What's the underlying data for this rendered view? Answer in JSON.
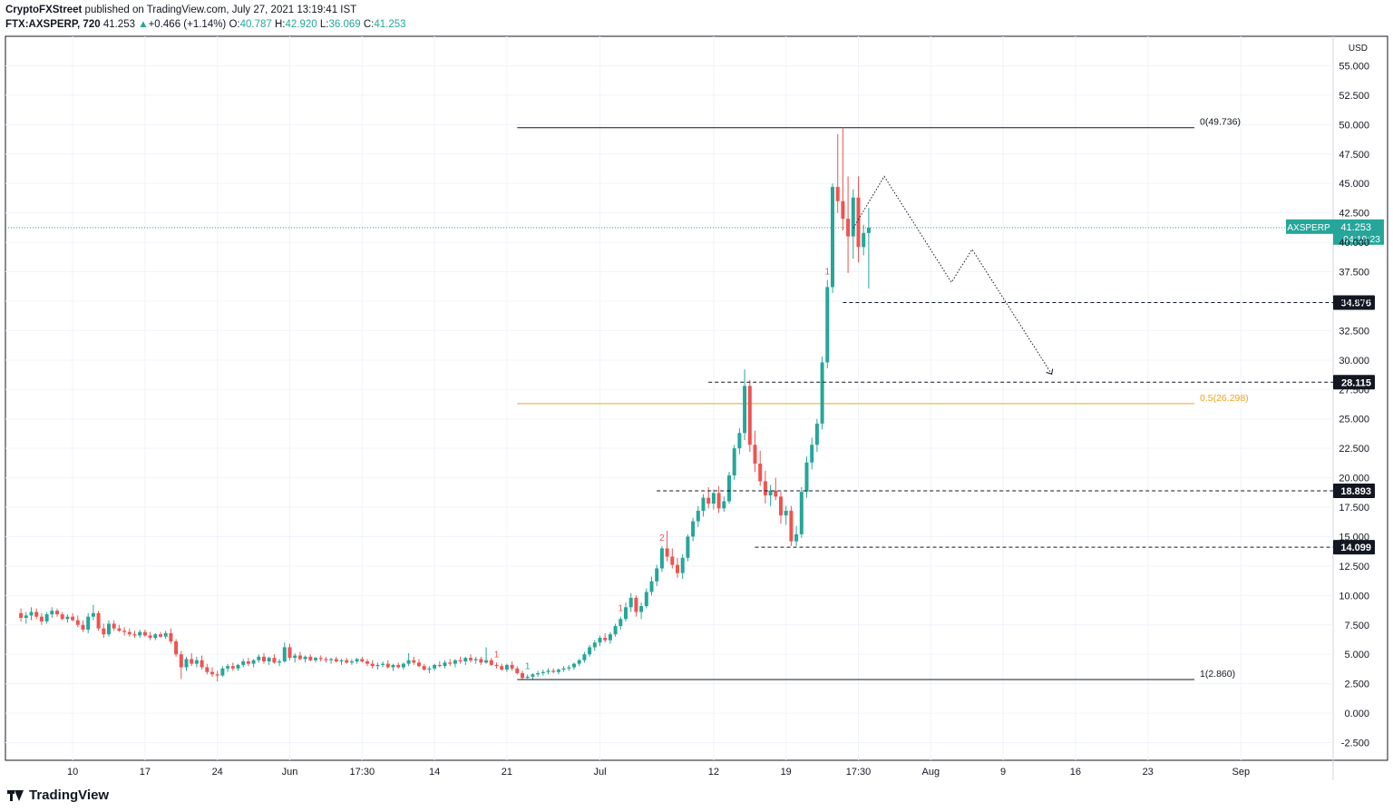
{
  "header": {
    "publisher": "CryptoFXStreet",
    "published_text": " published on TradingView.com, July 27, 2021 13:19:41 IST",
    "symbol_tf": "FTX:AXSPERP, 720",
    "last": "41.253",
    "change_arrow": "▲",
    "change": "+0.466 (+1.14%)",
    "o_label": "O:",
    "o_value": "40.787",
    "h_label": "H:",
    "h_value": "42.920",
    "l_label": "L:",
    "l_value": "36.069",
    "c_label": "C:",
    "c_value": "41.253"
  },
  "footer": {
    "brand": "TradingView"
  },
  "colors": {
    "up": "#26a69a",
    "down": "#ef5350",
    "fib_mid": "#f7a21b",
    "price_line": "#26a69a",
    "grid": "#f0f3fa",
    "text": "#131722"
  },
  "chart_data": {
    "type": "candlestick",
    "currency": "USD",
    "price_axis": {
      "ylim": [
        -4.0,
        57.5
      ],
      "ticks": [
        55.0,
        52.5,
        50.0,
        47.5,
        45.0,
        42.5,
        40.0,
        37.5,
        35.0,
        32.5,
        30.0,
        27.5,
        25.0,
        22.5,
        20.0,
        17.5,
        15.0,
        12.5,
        10.0,
        7.5,
        5.0,
        2.5,
        0.0,
        -2.5
      ],
      "tick_labels": [
        "55.000",
        "52.500",
        "50.000",
        "47.500",
        "45.000",
        "42.500",
        "40.000",
        "37.500",
        "35.000",
        "32.500",
        "30.000",
        "27.500",
        "25.000",
        "22.500",
        "20.000",
        "17.500",
        "15.000",
        "12.500",
        "10.000",
        "7.500",
        "5.000",
        "2.500",
        "0.000",
        "-2.500"
      ]
    },
    "time_axis": {
      "bars_per_day": 2,
      "first_visible_bar_day": 5,
      "ticks": [
        {
          "day": 10,
          "label": "10"
        },
        {
          "day": 17,
          "label": "17"
        },
        {
          "day": 24,
          "label": "24"
        },
        {
          "day": 31,
          "label": "Jun"
        },
        {
          "day": 38,
          "label": "17:30"
        },
        {
          "day": 45,
          "label": "14"
        },
        {
          "day": 52,
          "label": "21"
        },
        {
          "day": 61,
          "label": "Jul"
        },
        {
          "day": 72,
          "label": "12"
        },
        {
          "day": 79,
          "label": "19"
        },
        {
          "day": 86,
          "label": "17:30"
        },
        {
          "day": 93,
          "label": "Aug"
        },
        {
          "day": 100,
          "label": "9"
        },
        {
          "day": 107,
          "label": "16"
        },
        {
          "day": 114,
          "label": "23"
        },
        {
          "day": 123,
          "label": "Sep"
        }
      ]
    },
    "price_levels": [
      {
        "value": 34.876,
        "label": "34.876",
        "from_day": 84.5
      },
      {
        "value": 28.115,
        "label": "28.115",
        "from_day": 71.5
      },
      {
        "value": 18.893,
        "label": "18.893",
        "from_day": 66.5
      },
      {
        "value": 14.099,
        "label": "14.099",
        "from_day": 76.0
      }
    ],
    "fib_levels": [
      {
        "level": "0",
        "value": 49.736,
        "label": "0(49.736)"
      },
      {
        "level": "0.5",
        "value": 26.298,
        "label": "0.5(26.298)"
      },
      {
        "level": "1",
        "value": 2.86,
        "label": "1(2.860)"
      }
    ],
    "fib_range_days": [
      53.0,
      118.5
    ],
    "last_price": {
      "symbol": "AXSPERP",
      "value": "41.253",
      "countdown": "04:10:23"
    },
    "projection_path": [
      {
        "day": 85.5,
        "price": 41.2
      },
      {
        "day": 88.5,
        "price": 45.6
      },
      {
        "day": 95.0,
        "price": 36.6
      },
      {
        "day": 97.0,
        "price": 39.4
      },
      {
        "day": 104.7,
        "price": 28.8
      }
    ],
    "markers": [
      {
        "day": 51.0,
        "text": "1",
        "color": "down"
      },
      {
        "day": 54.0,
        "text": "1",
        "color": "up"
      },
      {
        "day": 63.0,
        "text": "1",
        "color": "down"
      },
      {
        "day": 67.0,
        "text": "2",
        "color": "down"
      },
      {
        "day": 83.0,
        "text": "1",
        "color": "down"
      }
    ],
    "ohlc": [
      [
        8.5,
        8.9,
        7.8,
        8.1
      ],
      [
        8.1,
        8.6,
        7.6,
        8.3
      ],
      [
        8.3,
        9.0,
        7.9,
        8.6
      ],
      [
        8.6,
        8.9,
        8.0,
        8.2
      ],
      [
        8.2,
        8.5,
        7.5,
        7.8
      ],
      [
        7.8,
        8.6,
        7.6,
        8.4
      ],
      [
        8.4,
        9.0,
        8.1,
        8.7
      ],
      [
        8.7,
        8.9,
        8.2,
        8.4
      ],
      [
        8.4,
        8.6,
        7.9,
        8.0
      ],
      [
        8.0,
        8.4,
        7.7,
        8.2
      ],
      [
        8.2,
        8.5,
        7.8,
        7.9
      ],
      [
        7.9,
        8.3,
        7.3,
        7.5
      ],
      [
        7.5,
        7.9,
        6.9,
        7.1
      ],
      [
        7.1,
        8.5,
        6.8,
        8.2
      ],
      [
        8.2,
        9.2,
        7.9,
        8.5
      ],
      [
        8.5,
        8.7,
        7.0,
        7.2
      ],
      [
        7.2,
        7.6,
        6.4,
        6.7
      ],
      [
        6.7,
        7.9,
        6.5,
        7.6
      ],
      [
        7.6,
        7.9,
        7.0,
        7.2
      ],
      [
        7.2,
        7.5,
        6.9,
        7.0
      ],
      [
        7.0,
        7.3,
        6.6,
        6.9
      ],
      [
        6.9,
        7.2,
        6.5,
        6.7
      ],
      [
        6.7,
        7.0,
        6.4,
        6.6
      ],
      [
        6.6,
        7.1,
        6.4,
        6.9
      ],
      [
        6.9,
        7.1,
        6.5,
        6.6
      ],
      [
        6.6,
        6.9,
        6.2,
        6.4
      ],
      [
        6.4,
        6.8,
        6.2,
        6.7
      ],
      [
        6.7,
        6.9,
        6.4,
        6.5
      ],
      [
        6.5,
        7.0,
        6.3,
        6.8
      ],
      [
        6.8,
        7.2,
        5.9,
        6.1
      ],
      [
        6.1,
        6.3,
        4.8,
        5.0
      ],
      [
        5.0,
        5.3,
        2.9,
        3.9
      ],
      [
        3.9,
        4.8,
        3.6,
        4.6
      ],
      [
        4.6,
        5.1,
        4.0,
        4.2
      ],
      [
        4.2,
        4.8,
        3.9,
        4.5
      ],
      [
        4.5,
        4.9,
        3.7,
        3.9
      ],
      [
        3.9,
        4.2,
        3.3,
        3.5
      ],
      [
        3.5,
        3.9,
        3.1,
        3.3
      ],
      [
        3.3,
        3.6,
        2.7,
        3.2
      ],
      [
        3.2,
        4.0,
        3.1,
        3.8
      ],
      [
        3.8,
        4.2,
        3.5,
        4.0
      ],
      [
        4.0,
        4.3,
        3.6,
        3.8
      ],
      [
        3.8,
        4.2,
        3.6,
        4.1
      ],
      [
        4.1,
        4.6,
        3.9,
        4.4
      ],
      [
        4.4,
        4.7,
        4.0,
        4.2
      ],
      [
        4.2,
        4.6,
        3.9,
        4.5
      ],
      [
        4.5,
        5.0,
        4.3,
        4.8
      ],
      [
        4.8,
        5.1,
        4.2,
        4.4
      ],
      [
        4.4,
        4.8,
        4.1,
        4.7
      ],
      [
        4.7,
        5.0,
        4.2,
        4.3
      ],
      [
        4.3,
        4.6,
        4.0,
        4.4
      ],
      [
        4.4,
        6.0,
        4.3,
        5.6
      ],
      [
        5.6,
        5.9,
        4.5,
        4.7
      ],
      [
        4.7,
        5.1,
        4.3,
        4.9
      ],
      [
        4.9,
        5.2,
        4.5,
        4.6
      ],
      [
        4.6,
        4.9,
        4.3,
        4.8
      ],
      [
        4.8,
        5.0,
        4.4,
        4.5
      ],
      [
        4.5,
        4.8,
        4.3,
        4.7
      ],
      [
        4.7,
        4.9,
        4.4,
        4.6
      ],
      [
        4.6,
        4.8,
        4.3,
        4.5
      ],
      [
        4.5,
        4.7,
        4.2,
        4.6
      ],
      [
        4.6,
        4.8,
        4.3,
        4.4
      ],
      [
        4.4,
        4.6,
        4.1,
        4.5
      ],
      [
        4.5,
        4.7,
        4.2,
        4.3
      ],
      [
        4.3,
        4.6,
        4.1,
        4.4
      ],
      [
        4.4,
        4.7,
        4.2,
        4.6
      ],
      [
        4.6,
        4.8,
        4.3,
        4.4
      ],
      [
        4.4,
        4.6,
        4.0,
        4.2
      ],
      [
        4.2,
        4.5,
        3.8,
        4.0
      ],
      [
        4.0,
        4.3,
        3.7,
        4.1
      ],
      [
        4.1,
        4.4,
        3.9,
        4.2
      ],
      [
        4.2,
        4.5,
        3.8,
        3.9
      ],
      [
        3.9,
        4.2,
        3.6,
        4.1
      ],
      [
        4.1,
        4.3,
        3.8,
        3.9
      ],
      [
        3.9,
        4.3,
        3.7,
        4.2
      ],
      [
        4.2,
        5.1,
        4.0,
        4.5
      ],
      [
        4.5,
        4.8,
        4.1,
        4.3
      ],
      [
        4.3,
        4.6,
        3.9,
        4.0
      ],
      [
        4.0,
        4.2,
        3.6,
        3.7
      ],
      [
        3.7,
        4.0,
        3.4,
        3.8
      ],
      [
        3.8,
        4.2,
        3.6,
        4.1
      ],
      [
        4.1,
        4.4,
        3.9,
        4.0
      ],
      [
        4.0,
        4.5,
        3.8,
        4.3
      ],
      [
        4.3,
        4.6,
        4.0,
        4.2
      ],
      [
        4.2,
        4.6,
        3.9,
        4.5
      ],
      [
        4.5,
        4.8,
        4.2,
        4.4
      ],
      [
        4.4,
        4.8,
        4.1,
        4.7
      ],
      [
        4.7,
        5.0,
        4.3,
        4.5
      ],
      [
        4.5,
        4.8,
        4.2,
        4.6
      ],
      [
        4.6,
        4.8,
        4.1,
        4.3
      ],
      [
        4.3,
        5.6,
        4.2,
        4.5
      ],
      [
        4.5,
        4.7,
        4.0,
        4.1
      ],
      [
        4.1,
        4.3,
        3.8,
        4.0
      ],
      [
        4.0,
        4.2,
        3.6,
        3.7
      ],
      [
        3.7,
        4.2,
        3.5,
        4.1
      ],
      [
        4.1,
        4.4,
        3.6,
        3.8
      ],
      [
        3.8,
        4.0,
        3.3,
        3.4
      ],
      [
        3.4,
        3.6,
        2.9,
        3.0
      ],
      [
        3.0,
        3.3,
        2.86,
        3.1
      ],
      [
        3.1,
        3.4,
        2.9,
        3.3
      ],
      [
        3.3,
        3.6,
        3.1,
        3.4
      ],
      [
        3.4,
        3.7,
        3.2,
        3.5
      ],
      [
        3.5,
        3.8,
        3.3,
        3.6
      ],
      [
        3.6,
        3.8,
        3.4,
        3.5
      ],
      [
        3.5,
        3.8,
        3.3,
        3.7
      ],
      [
        3.7,
        4.0,
        3.5,
        3.8
      ],
      [
        3.8,
        4.1,
        3.6,
        3.9
      ],
      [
        3.9,
        4.3,
        3.7,
        4.2
      ],
      [
        4.2,
        4.6,
        4.0,
        4.5
      ],
      [
        4.5,
        5.2,
        4.3,
        5.0
      ],
      [
        5.0,
        5.8,
        4.8,
        5.6
      ],
      [
        5.6,
        6.2,
        5.3,
        6.0
      ],
      [
        6.0,
        6.6,
        5.7,
        6.4
      ],
      [
        6.4,
        6.8,
        6.0,
        6.2
      ],
      [
        6.2,
        6.9,
        5.9,
        6.7
      ],
      [
        6.7,
        7.6,
        6.5,
        7.4
      ],
      [
        7.4,
        8.2,
        7.1,
        8.0
      ],
      [
        8.0,
        9.4,
        7.8,
        9.0
      ],
      [
        9.0,
        10.2,
        8.6,
        9.8
      ],
      [
        9.8,
        10.0,
        8.2,
        8.6
      ],
      [
        8.6,
        9.4,
        8.0,
        9.1
      ],
      [
        9.1,
        10.6,
        8.9,
        10.3
      ],
      [
        10.3,
        11.6,
        10.0,
        11.2
      ],
      [
        11.2,
        12.6,
        10.8,
        12.3
      ],
      [
        12.3,
        14.2,
        12.0,
        14.0
      ],
      [
        14.0,
        15.5,
        12.9,
        13.3
      ],
      [
        13.3,
        14.0,
        12.3,
        12.6
      ],
      [
        12.6,
        13.2,
        11.5,
        11.9
      ],
      [
        11.9,
        13.5,
        11.4,
        13.2
      ],
      [
        13.2,
        15.2,
        12.9,
        15.0
      ],
      [
        15.0,
        16.6,
        14.6,
        16.3
      ],
      [
        16.3,
        17.6,
        15.8,
        17.2
      ],
      [
        17.2,
        18.6,
        16.7,
        18.3
      ],
      [
        18.3,
        19.2,
        17.4,
        17.8
      ],
      [
        17.8,
        19.0,
        17.3,
        18.7
      ],
      [
        18.7,
        19.3,
        17.0,
        17.4
      ],
      [
        17.4,
        18.4,
        17.1,
        18.0
      ],
      [
        18.0,
        20.5,
        17.8,
        20.2
      ],
      [
        20.2,
        22.8,
        19.8,
        22.5
      ],
      [
        22.5,
        24.2,
        22.0,
        23.8
      ],
      [
        23.8,
        29.2,
        23.2,
        27.8
      ],
      [
        27.8,
        28.3,
        22.2,
        22.8
      ],
      [
        22.8,
        24.0,
        20.5,
        21.2
      ],
      [
        21.2,
        22.3,
        19.3,
        19.7
      ],
      [
        19.7,
        20.6,
        17.8,
        18.5
      ],
      [
        18.5,
        19.4,
        17.6,
        18.9
      ],
      [
        18.9,
        20.0,
        18.1,
        18.4
      ],
      [
        18.4,
        18.8,
        16.1,
        16.8
      ],
      [
        16.8,
        17.6,
        16.0,
        17.2
      ],
      [
        17.2,
        17.6,
        14.2,
        14.6
      ],
      [
        14.6,
        15.9,
        14.2,
        15.2
      ],
      [
        15.2,
        19.2,
        14.9,
        18.8
      ],
      [
        18.8,
        21.8,
        18.3,
        21.3
      ],
      [
        21.3,
        23.4,
        20.7,
        22.8
      ],
      [
        22.8,
        25.0,
        22.2,
        24.6
      ],
      [
        24.6,
        30.3,
        24.1,
        29.8
      ],
      [
        29.8,
        36.8,
        29.3,
        36.2
      ],
      [
        36.2,
        45.0,
        35.7,
        44.7
      ],
      [
        44.7,
        49.2,
        42.5,
        43.5
      ],
      [
        43.5,
        49.736,
        41.0,
        42.0
      ],
      [
        42.0,
        45.6,
        37.4,
        40.5
      ],
      [
        40.5,
        44.5,
        38.6,
        43.8
      ],
      [
        43.8,
        45.6,
        38.3,
        39.6
      ],
      [
        39.6,
        41.5,
        38.9,
        40.787
      ],
      [
        40.787,
        42.92,
        36.069,
        41.253
      ]
    ]
  }
}
